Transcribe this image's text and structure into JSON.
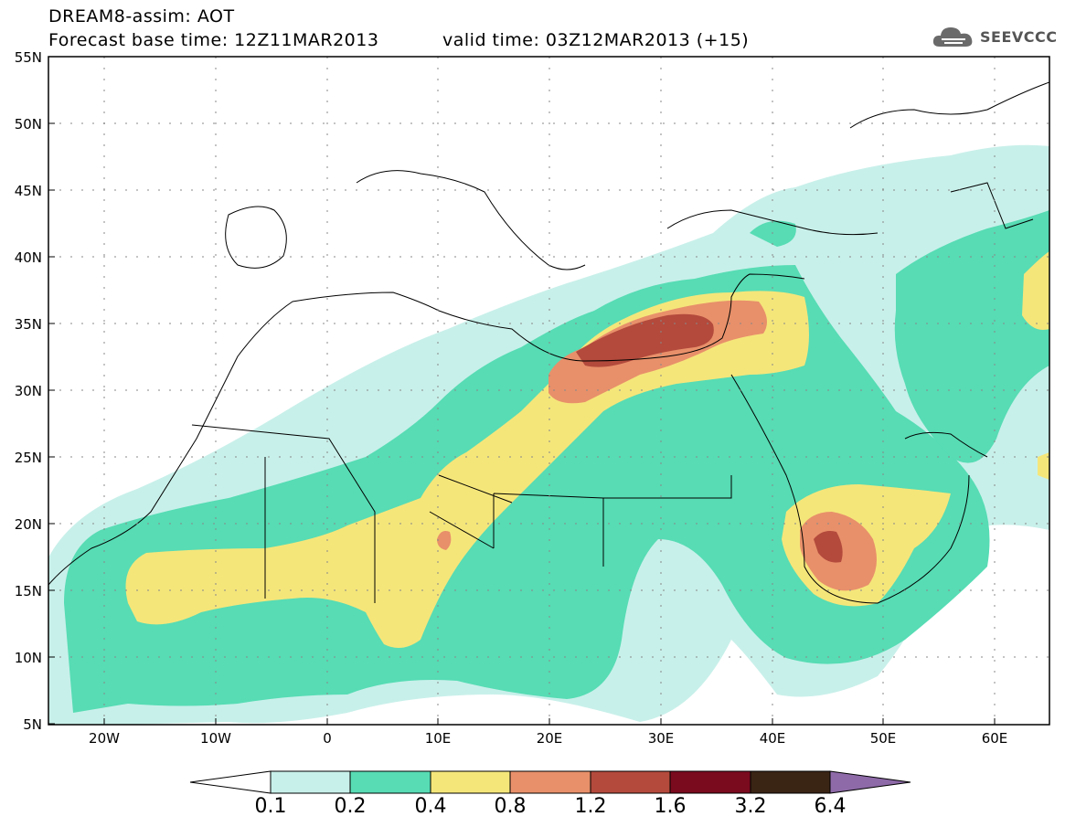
{
  "header": {
    "title": "DREAM8-assim: AOT",
    "base_time": "Forecast base time: 12Z11MAR2013",
    "valid_time": "valid time: 03Z12MAR2013 (+15)"
  },
  "logo": {
    "text": "SEEVCCC",
    "icon": "cloud-icon"
  },
  "map": {
    "variable": "Aerosol Optical Thickness",
    "lon_range": [
      -25,
      65
    ],
    "lat_range": [
      5,
      55
    ],
    "lat_ticks": [
      "55N",
      "50N",
      "45N",
      "40N",
      "35N",
      "30N",
      "25N",
      "20N",
      "15N",
      "10N",
      "5N"
    ],
    "lon_ticks": [
      "20W",
      "10W",
      "0",
      "10E",
      "20E",
      "30E",
      "40E",
      "50E",
      "60E"
    ],
    "gridlines": "dotted"
  },
  "colorbar": {
    "labels": [
      "0.1",
      "0.2",
      "0.4",
      "0.8",
      "1.2",
      "1.6",
      "3.2",
      "6.4"
    ],
    "colors": [
      "#ffffff",
      "#c8f0ea",
      "#57dcb4",
      "#f5e67a",
      "#e8906a",
      "#b34a3c",
      "#7a0a1e",
      "#3a2414",
      "#8e6aa8"
    ]
  },
  "colors": {
    "c1": "#c8f0ea",
    "c2": "#57dcb4",
    "c3": "#f5e67a",
    "c4": "#e8906a",
    "c5": "#b34a3c"
  }
}
